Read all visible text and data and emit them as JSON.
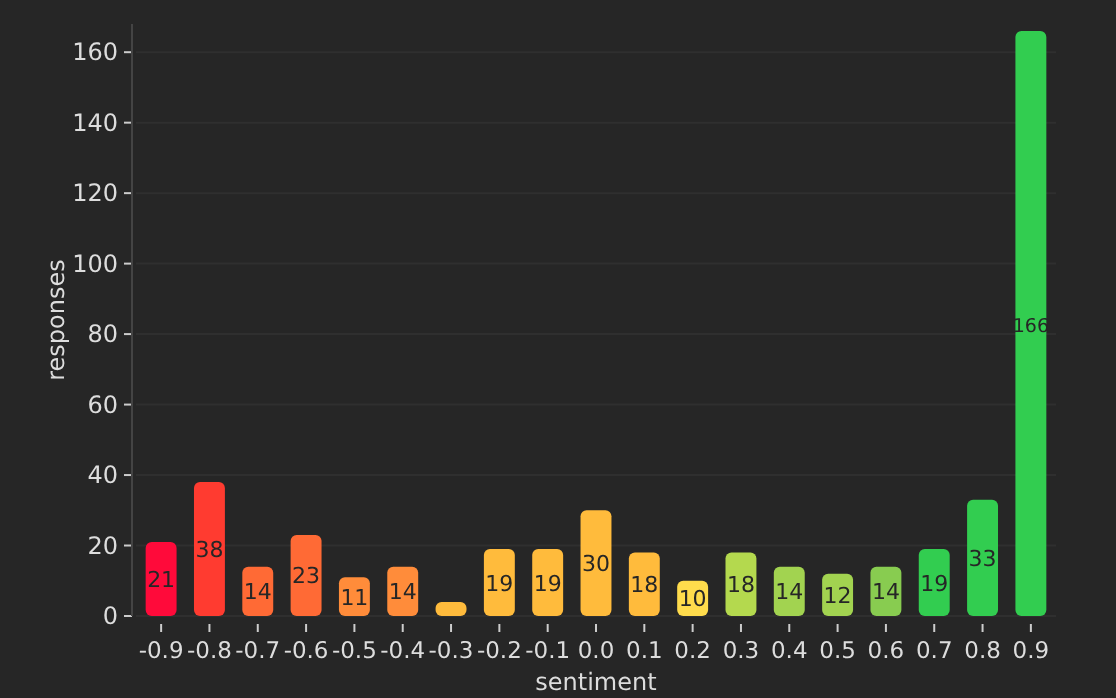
{
  "chart_data": {
    "type": "bar",
    "xlabel": "sentiment",
    "ylabel": "responses",
    "categories": [
      "-0.9",
      "-0.8",
      "-0.7",
      "-0.6",
      "-0.5",
      "-0.4",
      "-0.3",
      "-0.2",
      "-0.1",
      "0.0",
      "0.1",
      "0.2",
      "0.3",
      "0.4",
      "0.5",
      "0.6",
      "0.7",
      "0.8",
      "0.9"
    ],
    "values": [
      21,
      38,
      14,
      23,
      11,
      14,
      4,
      19,
      19,
      30,
      18,
      10,
      18,
      14,
      12,
      14,
      19,
      33,
      166
    ],
    "value_labels": [
      "21",
      "38",
      "14",
      "23",
      "11",
      "14",
      null,
      "19",
      "19",
      "30",
      "18",
      "10",
      "18",
      "14",
      "12",
      "14",
      "19",
      "33",
      "166"
    ],
    "colors": [
      "#ff0a3a",
      "#ff3b30",
      "#ff6a35",
      "#ff6a35",
      "#ff8c3a",
      "#ff8c3a",
      "#ffbb3c",
      "#ffbb3c",
      "#ffbb3c",
      "#ffbb3c",
      "#ffbb3c",
      "#ffdc4c",
      "#b4d94e",
      "#a2d350",
      "#a2d350",
      "#88cc50",
      "#32cd50",
      "#32cd50",
      "#32cd50"
    ],
    "ylim": [
      0,
      168
    ],
    "yticks": [
      0,
      20,
      40,
      60,
      80,
      100,
      120,
      140,
      160
    ],
    "grid": "y"
  }
}
